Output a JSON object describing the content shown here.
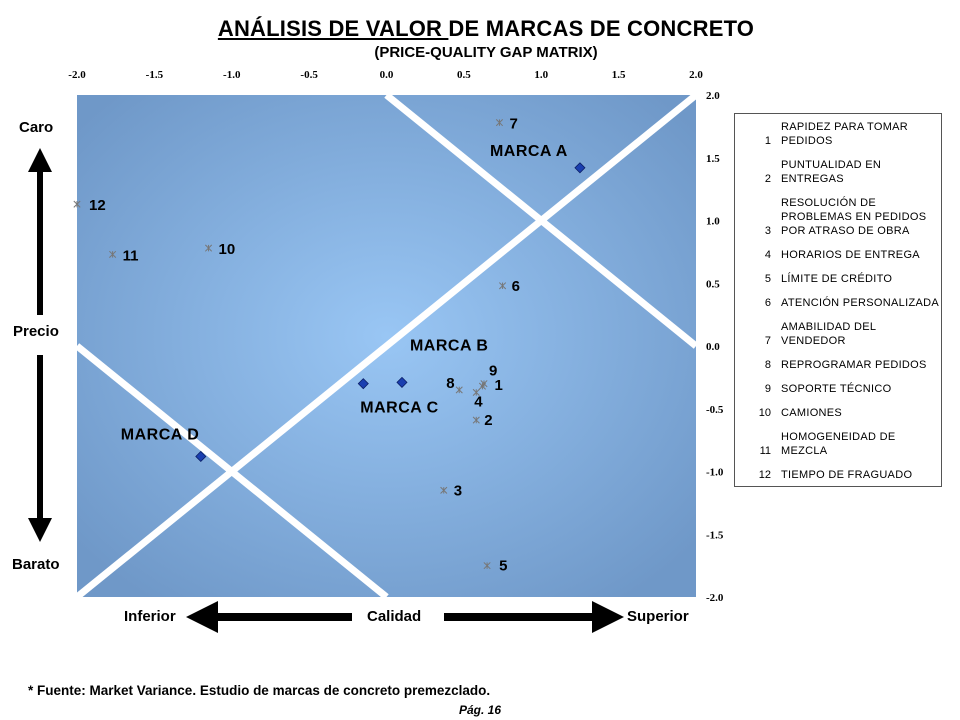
{
  "title": {
    "underlined": "ANÁLISIS DE VALOR ",
    "rest": "DE MARCAS DE CONCRETO"
  },
  "subtitle": "(PRICE-QUALITY GAP MATRIX)",
  "axis_labels": {
    "y_top": "Caro",
    "y_mid": "Precio",
    "y_bottom": "Barato",
    "x_left": "Inferior",
    "x_mid": "Calidad",
    "x_right": "Superior"
  },
  "legend": [
    {
      "num": "1",
      "text": "RAPIDEZ PARA TOMAR PEDIDOS"
    },
    {
      "num": "2",
      "text": "PUNTUALIDAD EN ENTREGAS"
    },
    {
      "num": "3",
      "text": "RESOLUCIÓN DE PROBLEMAS EN PEDIDOS POR ATRASO DE OBRA"
    },
    {
      "num": "4",
      "text": "HORARIOS DE ENTREGA"
    },
    {
      "num": "5",
      "text": "LÍMITE DE CRÉDITO"
    },
    {
      "num": "6",
      "text": "ATENCIÓN PERSONALIZADA"
    },
    {
      "num": "7",
      "text": "AMABILIDAD DEL VENDEDOR"
    },
    {
      "num": "8",
      "text": "REPROGRAMAR PEDIDOS"
    },
    {
      "num": "9",
      "text": "SOPORTE TÉCNICO"
    },
    {
      "num": "10",
      "text": "CAMIONES"
    },
    {
      "num": "11",
      "text": "HOMOGENEIDAD DE MEZCLA"
    },
    {
      "num": "12",
      "text": "TIEMPO DE FRAGUADO"
    }
  ],
  "footnote": "* Fuente: Market Variance. Estudio de marcas de concreto premezclado.",
  "page_label": "Pág. 16",
  "colors": {
    "plot_center": "#99c6f4",
    "plot_edge": "#6f98c8",
    "brand_marker": "#1a3fb0",
    "attribute_marker": "#777777",
    "diagonal": "#ffffff"
  },
  "chart_data": {
    "type": "scatter",
    "xlim": [
      -2.0,
      2.0
    ],
    "ylim": [
      -2.0,
      2.0
    ],
    "x_ticks": [
      "-2.0",
      "-1.5",
      "-1.0",
      "-0.5",
      "0.0",
      "0.5",
      "1.0",
      "1.5",
      "2.0"
    ],
    "y_ticks": [
      "2.0",
      "1.5",
      "1.0",
      "0.5",
      "0.0",
      "-0.5",
      "-1.0",
      "-1.5",
      "-2.0"
    ],
    "x_axis_position": "top",
    "y_axis_position": "right",
    "grid": false,
    "brands": [
      {
        "label": "MARCA A",
        "x": 1.25,
        "y": 1.42
      },
      {
        "label": "MARCA B",
        "x": 0.1,
        "y": -0.29
      },
      {
        "label": "MARCA C",
        "x": -0.15,
        "y": -0.3
      },
      {
        "label": "MARCA D",
        "x": -1.2,
        "y": -0.88
      }
    ],
    "attributes": [
      {
        "label": "1",
        "x": 0.62,
        "y": -0.32
      },
      {
        "label": "2",
        "x": 0.58,
        "y": -0.59
      },
      {
        "label": "3",
        "x": 0.37,
        "y": -1.15
      },
      {
        "label": "4",
        "x": 0.58,
        "y": -0.37
      },
      {
        "label": "5",
        "x": 0.65,
        "y": -1.75
      },
      {
        "label": "6",
        "x": 0.75,
        "y": 0.48
      },
      {
        "label": "7",
        "x": 0.73,
        "y": 1.78
      },
      {
        "label": "8",
        "x": 0.47,
        "y": -0.35
      },
      {
        "label": "9",
        "x": 0.63,
        "y": -0.3
      },
      {
        "label": "10",
        "x": -1.15,
        "y": 0.78
      },
      {
        "label": "11",
        "x": -1.77,
        "y": 0.73
      },
      {
        "label": "12",
        "x": -2.0,
        "y": 1.13
      }
    ],
    "diagonals": [
      {
        "x1": -2.0,
        "y1": -2.0,
        "x2": 2.0,
        "y2": 2.0
      },
      {
        "x1": -2.0,
        "y1": 0.0,
        "x2": 0.0,
        "y2": -2.0
      },
      {
        "x1": 0.0,
        "y1": 2.0,
        "x2": 2.0,
        "y2": 0.0
      }
    ]
  }
}
